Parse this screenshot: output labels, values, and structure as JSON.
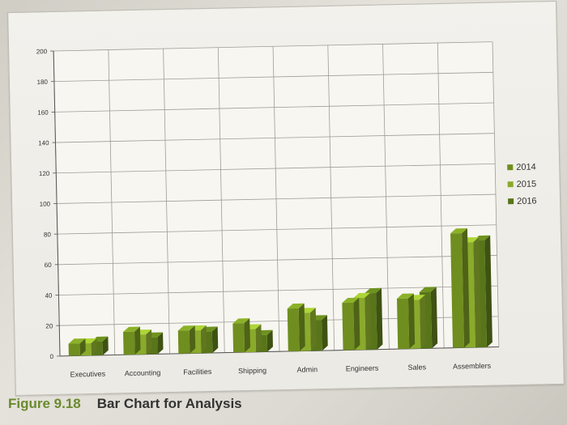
{
  "chart_data": {
    "type": "bar",
    "categories": [
      "Executives",
      "Accounting",
      "Facilities",
      "Shipping",
      "Admin",
      "Engineers",
      "Sales",
      "Assemblers"
    ],
    "series": [
      {
        "name": "2014",
        "values": [
          8,
          15,
          15,
          19,
          28,
          31,
          33,
          75
        ],
        "color": "#6f8e1f"
      },
      {
        "name": "2015",
        "values": [
          8,
          13,
          15,
          15,
          25,
          34,
          32,
          69
        ],
        "color": "#8aaa2c"
      },
      {
        "name": "2016",
        "values": [
          9,
          11,
          14,
          11,
          20,
          37,
          37,
          70
        ],
        "color": "#587519"
      }
    ],
    "ylim": [
      0,
      200
    ],
    "yticks": [
      "0",
      "20",
      "40",
      "60",
      "80",
      "100",
      "120",
      "140",
      "160",
      "180",
      "200"
    ],
    "grid": true,
    "legend_position": "right",
    "title": "",
    "xlabel": "",
    "ylabel": ""
  },
  "caption": {
    "number": "Figure 9.18",
    "text": "Bar Chart for Analysis"
  }
}
